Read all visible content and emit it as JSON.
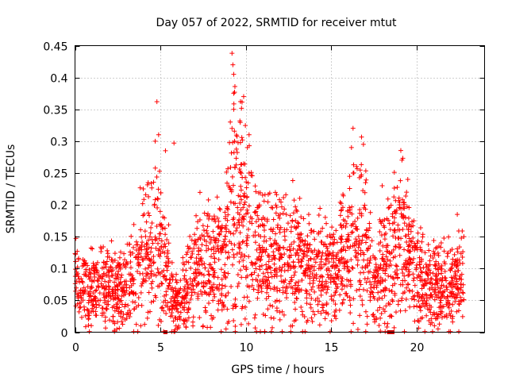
{
  "chart_data": {
    "type": "scatter",
    "title": "Day 057 of 2022, SRMTID for receiver mtut",
    "xlabel": "GPS time / hours",
    "ylabel": "SRMTID / TECUs",
    "xlim": [
      0,
      24
    ],
    "ylim": [
      0,
      0.45
    ],
    "xticks": [
      0,
      5,
      10,
      15,
      20
    ],
    "yticks": [
      0,
      0.05,
      0.1,
      0.15,
      0.2,
      0.25,
      0.3,
      0.35,
      0.4,
      0.45
    ],
    "ytick_labels": [
      "0",
      "0.05",
      "0.1",
      "0.15",
      "0.2",
      "0.25",
      "0.3",
      "0.35",
      "0.4",
      "0.45"
    ],
    "grid": true,
    "marker": "plus",
    "color": "#ff0000",
    "series": [
      {
        "name": "SRMTID",
        "x_start": 0.0,
        "x_end": 22.8,
        "profile": [
          [
            0.0,
            0.065
          ],
          [
            1.0,
            0.07
          ],
          [
            2.0,
            0.07
          ],
          [
            2.7,
            0.065
          ],
          [
            3.5,
            0.09
          ],
          [
            4.2,
            0.12
          ],
          [
            4.8,
            0.15
          ],
          [
            5.3,
            0.1
          ],
          [
            5.8,
            0.05
          ],
          [
            6.2,
            0.05
          ],
          [
            7.0,
            0.09
          ],
          [
            8.0,
            0.11
          ],
          [
            8.8,
            0.1
          ],
          [
            9.3,
            0.2
          ],
          [
            9.8,
            0.18
          ],
          [
            10.3,
            0.14
          ],
          [
            11.0,
            0.11
          ],
          [
            12.0,
            0.11
          ],
          [
            13.0,
            0.11
          ],
          [
            14.0,
            0.09
          ],
          [
            15.0,
            0.09
          ],
          [
            16.0,
            0.12
          ],
          [
            16.5,
            0.17
          ],
          [
            17.0,
            0.14
          ],
          [
            17.5,
            0.06
          ],
          [
            18.0,
            0.09
          ],
          [
            18.6,
            0.12
          ],
          [
            19.2,
            0.15
          ],
          [
            19.6,
            0.1
          ],
          [
            20.0,
            0.09
          ],
          [
            21.0,
            0.07
          ],
          [
            22.0,
            0.07
          ],
          [
            22.8,
            0.08
          ]
        ],
        "peaks": [
          [
            4.8,
            0.362
          ],
          [
            4.9,
            0.31
          ],
          [
            5.3,
            0.285
          ],
          [
            5.8,
            0.297
          ],
          [
            9.2,
            0.438
          ],
          [
            9.25,
            0.42
          ],
          [
            9.3,
            0.405
          ],
          [
            9.3,
            0.375
          ],
          [
            9.1,
            0.33
          ],
          [
            9.2,
            0.32
          ],
          [
            9.35,
            0.3
          ],
          [
            10.2,
            0.31
          ],
          [
            10.1,
            0.29
          ],
          [
            10.2,
            0.25
          ],
          [
            16.2,
            0.29
          ],
          [
            16.9,
            0.295
          ],
          [
            16.5,
            0.26
          ],
          [
            16.3,
            0.25
          ],
          [
            19.5,
            0.24
          ],
          [
            18.0,
            0.23
          ],
          [
            22.4,
            0.185
          ],
          [
            9.3,
            0.35
          ],
          [
            4.7,
            0.3
          ],
          [
            4.0,
            0.225
          ]
        ]
      },
      {
        "name": "zero markers",
        "x": [
          5.3,
          18.4,
          18.6
        ],
        "y": [
          0,
          0,
          0
        ]
      }
    ]
  }
}
